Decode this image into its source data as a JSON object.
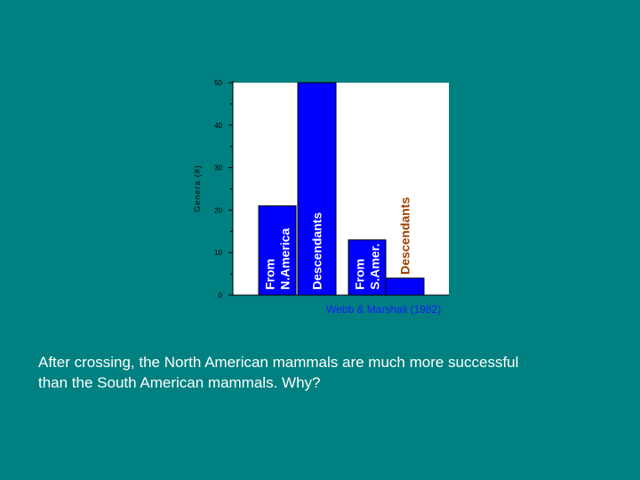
{
  "chart_data": {
    "type": "bar",
    "ylabel": "Genera (#)",
    "ylim": [
      0,
      50
    ],
    "yticks": [
      0,
      10,
      20,
      30,
      40,
      50
    ],
    "grid": false,
    "source": "Webb & Marshall (1982)",
    "bars": [
      {
        "label": "From N.America",
        "label_lines": [
          "From",
          "N.America"
        ],
        "value": 21,
        "label_color": "#ffffff"
      },
      {
        "label": "Descendants",
        "label_lines": [
          "Descendants"
        ],
        "value": 50,
        "label_color": "#ffffff"
      },
      {
        "label": "From S.Amer.",
        "label_lines": [
          "From",
          "S.Amer."
        ],
        "value": 13,
        "label_color": "#ffffff"
      },
      {
        "label": "Descendants",
        "label_lines": [
          "Descendants"
        ],
        "value": 4,
        "label_color": "#a04000",
        "label_above": true
      }
    ],
    "bar_color": "#0000ff",
    "plot_bg": "#ffffff",
    "axis_color": "#000000",
    "source_color": "#1a1aff"
  },
  "caption": {
    "line1": "After crossing, the North American mammals are much more successful",
    "line2": "than the South American mammals.   Why?"
  },
  "colors": {
    "background": "#008080",
    "caption_text": "#ffffff"
  }
}
